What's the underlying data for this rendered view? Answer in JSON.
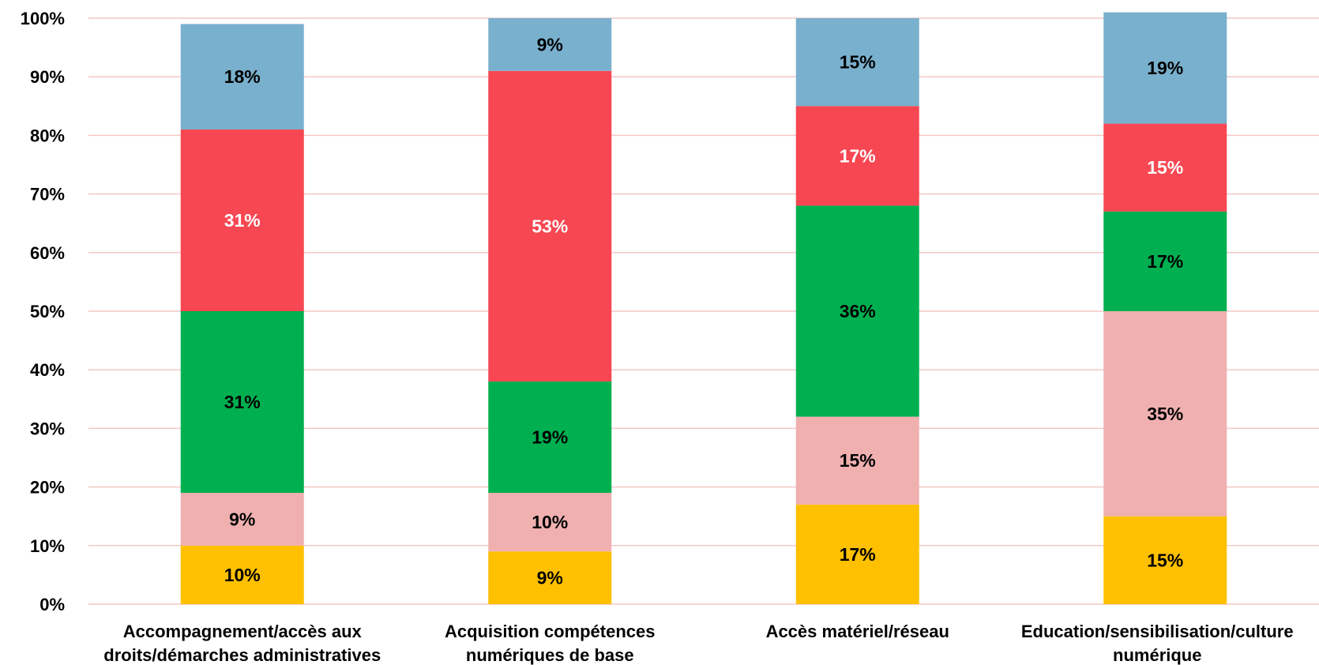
{
  "chart_data": {
    "type": "bar",
    "stacked": true,
    "percent": true,
    "title": "",
    "xlabel": "",
    "ylabel": "",
    "ylim": [
      0,
      100
    ],
    "yticks": [
      "0%",
      "10%",
      "20%",
      "30%",
      "40%",
      "50%",
      "60%",
      "70%",
      "80%",
      "90%",
      "100%"
    ],
    "grid": true,
    "legend": "none",
    "categories": [
      [
        "Accompagnement/accès aux",
        "droits/démarches administratives"
      ],
      [
        "Acquisition compétences",
        "numériques de base"
      ],
      [
        "Accès matériel/réseau"
      ],
      [
        "Education/sensibilisation/culture",
        "numérique"
      ]
    ],
    "series": [
      {
        "color": "#ffc000",
        "label_color": "#000000",
        "values": [
          10,
          9,
          17,
          15
        ],
        "labels": [
          "10%",
          "9%",
          "17%",
          "15%"
        ]
      },
      {
        "color": "#f0b0b0",
        "label_color": "#000000",
        "values": [
          9,
          10,
          15,
          35
        ],
        "labels": [
          "9%",
          "10%",
          "15%",
          "35%"
        ]
      },
      {
        "color": "#00b050",
        "label_color": "#000000",
        "values": [
          31,
          19,
          36,
          17
        ],
        "labels": [
          "31%",
          "19%",
          "36%",
          "17%"
        ]
      },
      {
        "color": "#f74752",
        "label_color": "#ffffff",
        "values": [
          31,
          53,
          17,
          15
        ],
        "labels": [
          "31%",
          "53%",
          "17%",
          "15%"
        ]
      },
      {
        "color": "#79b0cd",
        "label_color": "#000000",
        "values": [
          18,
          9,
          15,
          19
        ],
        "labels": [
          "18%",
          "9%",
          "15%",
          "19%"
        ]
      }
    ]
  }
}
